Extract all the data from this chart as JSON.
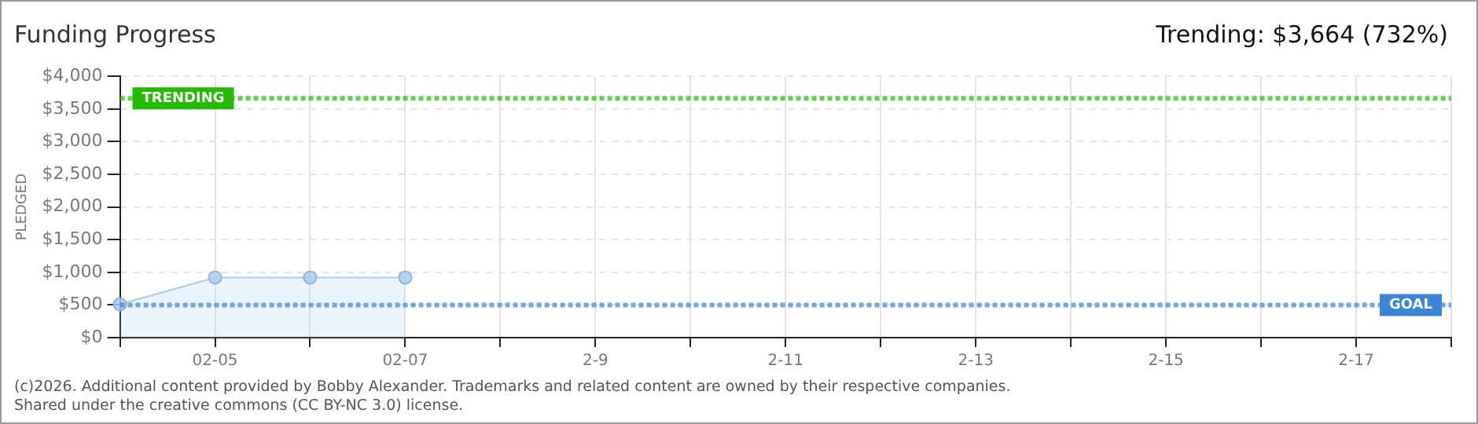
{
  "chart_data": {
    "type": "area",
    "title": "Funding Progress",
    "ylabel": "PLEDGED",
    "annotations": [
      "Trending: $3,664 (732%)",
      "(c)2026. Additional content provided by Bobby Alexander. Trademarks and related content are owned by their respective companies.",
      "Shared under the creative commons (CC BY-NC 3.0) license."
    ],
    "categories": [
      null,
      "02-05",
      null,
      "02-07",
      null,
      "2-9",
      null,
      "2-11",
      null,
      "2-13",
      null,
      "2-15",
      null,
      "2-17",
      null
    ],
    "series": [
      {
        "color": "#a9cbef",
        "values": [
          510,
          920,
          920,
          920,
          null,
          null,
          null,
          null,
          null,
          null,
          null,
          null,
          null,
          null,
          null
        ]
      }
    ],
    "ylim": [
      0,
      4000
    ],
    "yticks": [
      {
        "value": 0,
        "label": "$0"
      },
      {
        "value": 500,
        "label": "$500"
      },
      {
        "value": 1000,
        "label": "$1,000"
      },
      {
        "value": 1500,
        "label": "$1,500"
      },
      {
        "value": 2000,
        "label": "$2,000"
      },
      {
        "value": 2500,
        "label": "$2,500"
      },
      {
        "value": 3000,
        "label": "$3,000"
      },
      {
        "value": 3500,
        "label": "$3,500"
      },
      {
        "value": 4000,
        "label": "$4,000"
      }
    ],
    "grid": true,
    "legend": false,
    "marker": "circle",
    "ref_lines": [
      {
        "axis": "y",
        "value": 3664,
        "label": "TRENDING",
        "color": "#22bb00",
        "line_style": "dotted"
      },
      {
        "axis": "y",
        "value": 500,
        "label": "GOAL",
        "color": "#3a86d4",
        "line_style": "dotted"
      }
    ]
  }
}
